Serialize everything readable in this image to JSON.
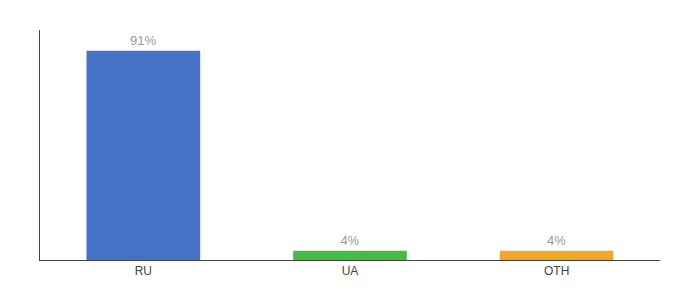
{
  "chart_data": {
    "type": "bar",
    "categories": [
      "RU",
      "UA",
      "OTH"
    ],
    "values": [
      91,
      4,
      4
    ],
    "value_labels": [
      "91%",
      "4%",
      "4%"
    ],
    "data_labels": true,
    "colors": [
      "#4472c4",
      "#44bb44",
      "#f0a828"
    ],
    "ylim": [
      0,
      100
    ],
    "tick_labels": "x",
    "grid": false
  }
}
